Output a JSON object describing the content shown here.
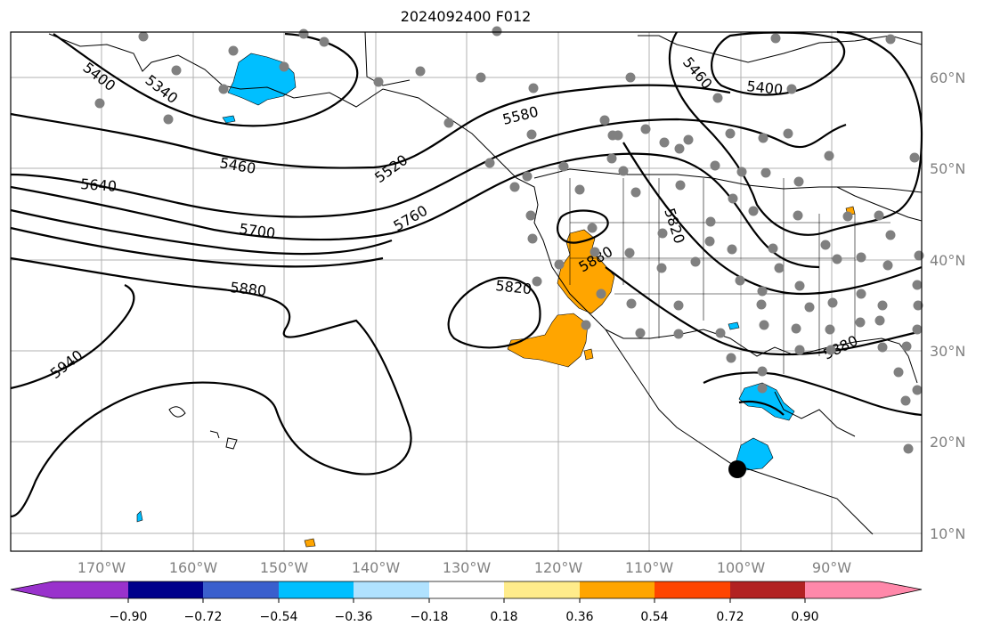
{
  "title": "2024092400 F012",
  "longitude_labels": [
    "170°W",
    "160°W",
    "150°W",
    "140°W",
    "130°W",
    "120°W",
    "110°W",
    "100°W",
    "90°W"
  ],
  "latitude_labels": [
    "60°N",
    "50°N",
    "40°N",
    "30°N",
    "20°N",
    "10°N"
  ],
  "contour_labels": [
    "5400",
    "5340",
    "5460",
    "5640",
    "5700",
    "5880",
    "5940",
    "5520",
    "5580",
    "5760",
    "5460",
    "5400",
    "5820",
    "5820",
    "5880",
    "5880"
  ],
  "colorbar": {
    "colors": [
      "#9932cc",
      "#00008b",
      "#3a5fcd",
      "#00bfff",
      "#b0e2ff",
      "#ffffff",
      "#ffec8b",
      "#ffa500",
      "#ff4500",
      "#b22222",
      "#ff88aa"
    ],
    "tick_labels": [
      "−0.90",
      "−0.72",
      "−0.54",
      "−0.36",
      "−0.18",
      "0.18",
      "0.36",
      "0.54",
      "0.72",
      "0.90"
    ]
  },
  "colors": {
    "positive_anomaly": "#ffa500",
    "negative_anomaly": "#00bfff",
    "station_dot": "#808080",
    "contour": "#000000"
  },
  "storm_marker_icon": "black-circle-icon"
}
